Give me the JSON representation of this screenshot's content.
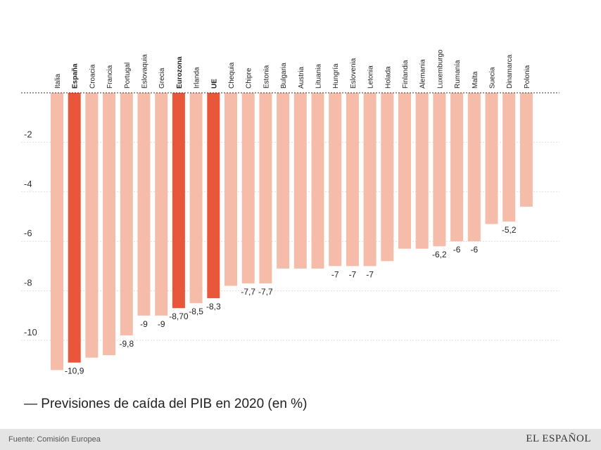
{
  "chart_data": {
    "type": "bar",
    "title": "— Previsiones de caída del PIB en 2020 (en %)",
    "categories": [
      "Italia",
      "España",
      "Croacia",
      "Francia",
      "Portugal",
      "Eslovaquia",
      "Grecia",
      "Eurozona",
      "Irlanda",
      "UE",
      "Chequia",
      "Chipre",
      "Estonia",
      "Bulgaria",
      "Austria",
      "Lituania",
      "Hungría",
      "Eslovenia",
      "Letonia",
      "Holada",
      "Finlandia",
      "Alemania",
      "Luxemburgo",
      "Rumanía",
      "Malta",
      "Suecia",
      "Dinamarca",
      "Polonia"
    ],
    "values": [
      -11.2,
      -10.9,
      -10.7,
      -10.6,
      -9.8,
      -9.0,
      -9.0,
      -8.7,
      -8.5,
      -8.3,
      -7.8,
      -7.7,
      -7.7,
      -7.1,
      -7.1,
      -7.1,
      -7.0,
      -7.0,
      -7.0,
      -6.8,
      -6.3,
      -6.3,
      -6.2,
      -6.0,
      -6.0,
      -5.3,
      -5.2,
      -4.6
    ],
    "value_labels": [
      "",
      "-10,9",
      "",
      "",
      "-9,8",
      "-9",
      "-9",
      "-8,70",
      "-8,5",
      "-8,3",
      "",
      "-7,7",
      "-7,7",
      "",
      "",
      "",
      "-7",
      "-7",
      "-7",
      "",
      "",
      "",
      "-6,2",
      "-6",
      "-6",
      "",
      "-5,2",
      ""
    ],
    "highlighted": [
      "España",
      "Eurozona",
      "UE"
    ],
    "colors": {
      "default": "#f5bca9",
      "highlight": "#e8573a"
    },
    "ytick_labels": [
      "-2",
      "-4",
      "-6",
      "-8",
      "-10"
    ],
    "ytick_values": [
      -2,
      -4,
      -6,
      -8,
      -10
    ],
    "ylim": [
      -11.3,
      0
    ],
    "grid": true,
    "xlabel": "",
    "ylabel": ""
  },
  "footer": {
    "source": "Fuente: Comisión Europea",
    "brand": "EL ESPAÑOL"
  }
}
